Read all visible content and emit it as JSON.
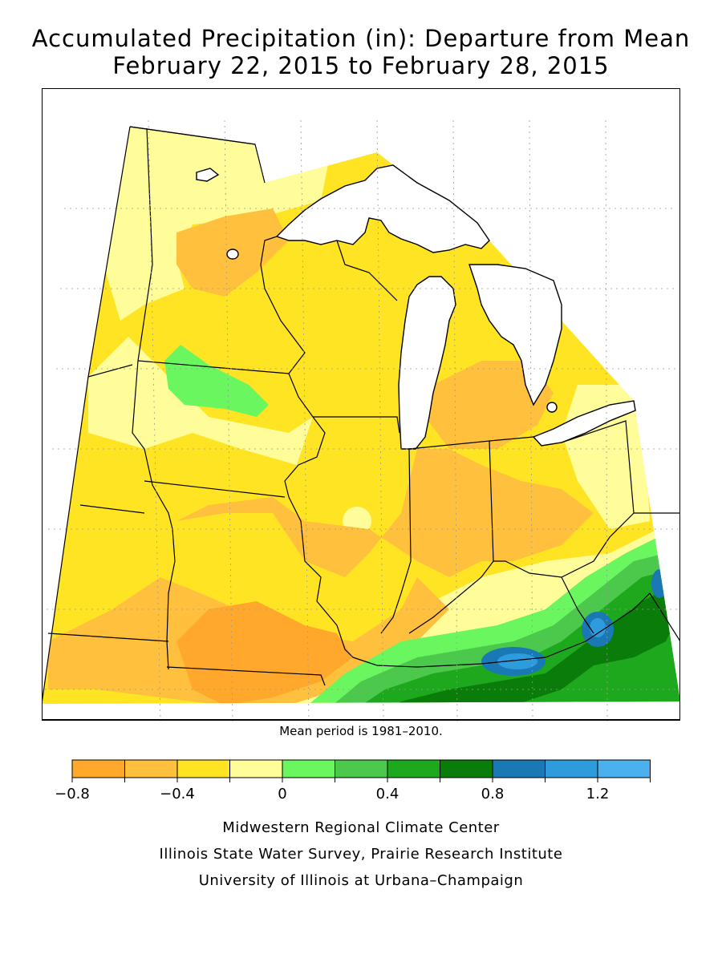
{
  "title": {
    "line1": "Accumulated Precipitation (in): Departure from Mean",
    "line2": "February 22, 2015 to February 28, 2015"
  },
  "map": {
    "region": "Midwest",
    "states": [
      "Minnesota",
      "Iowa",
      "Missouri",
      "Wisconsin",
      "Illinois",
      "Michigan",
      "Indiana",
      "Ohio",
      "Kentucky"
    ],
    "colors": {
      "lake": "#ffffff",
      "outline": "#000000",
      "grid": "#9a9a9a"
    }
  },
  "mean_period": "Mean period is 1981–2010.",
  "legend": {
    "bins": [
      {
        "from": -0.8,
        "to": -0.6,
        "color": "#FFA82C"
      },
      {
        "from": -0.6,
        "to": -0.4,
        "color": "#FFC03E"
      },
      {
        "from": -0.4,
        "to": -0.2,
        "color": "#FFE424"
      },
      {
        "from": -0.2,
        "to": 0.0,
        "color": "#FFFC9A"
      },
      {
        "from": 0.0,
        "to": 0.2,
        "color": "#6AF65E"
      },
      {
        "from": 0.2,
        "to": 0.4,
        "color": "#4CC94C"
      },
      {
        "from": 0.4,
        "to": 0.6,
        "color": "#1EA81E"
      },
      {
        "from": 0.6,
        "to": 0.8,
        "color": "#0A7C0A"
      },
      {
        "from": 0.8,
        "to": 1.0,
        "color": "#1A78B4"
      },
      {
        "from": 1.0,
        "to": 1.2,
        "color": "#2E9CDC"
      },
      {
        "from": 1.2,
        "to": 1.4,
        "color": "#4AB0EE"
      }
    ],
    "tick_labels": [
      "−0.8",
      "−0.4",
      "0",
      "0.4",
      "0.8",
      "1.2"
    ]
  },
  "credits": [
    "Midwestern Regional Climate Center",
    "Illinois State Water Survey, Prairie Research Institute",
    "University of Illinois at Urbana–Champaign"
  ]
}
